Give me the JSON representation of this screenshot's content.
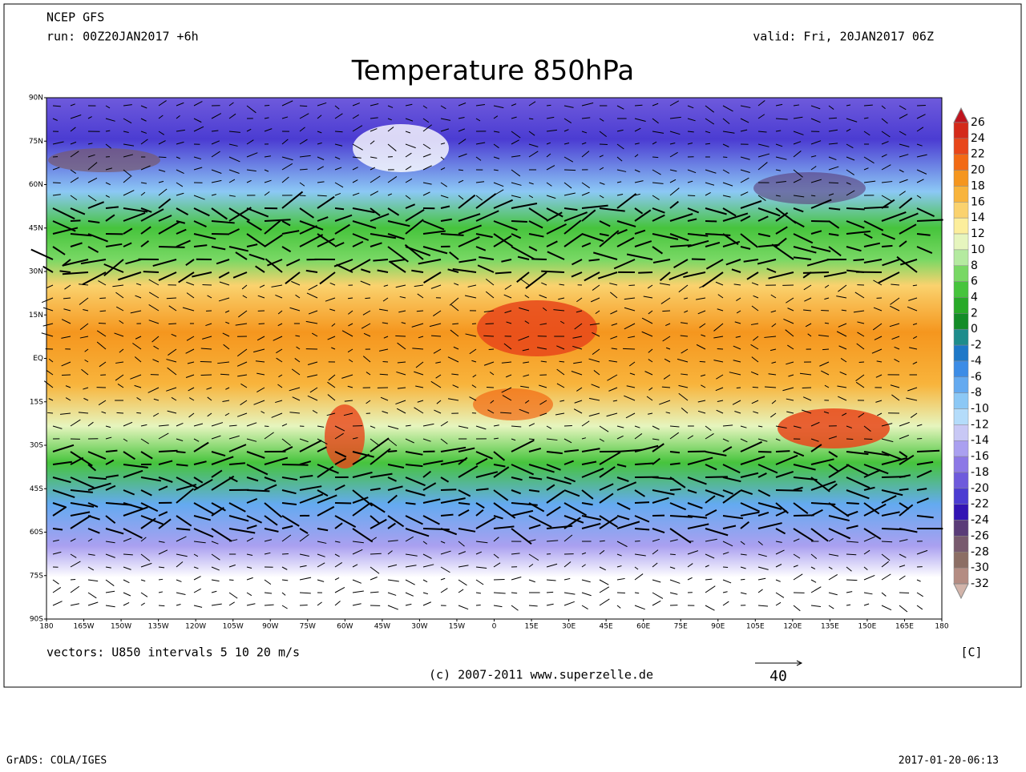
{
  "header": {
    "source": "NCEP GFS",
    "run": "run: 00Z20JAN2017 +6h",
    "valid": "valid: Fri, 20JAN2017 06Z",
    "title": "Temperature 850hPa"
  },
  "map": {
    "lat_labels": [
      "90N",
      "75N",
      "60N",
      "45N",
      "30N",
      "15N",
      "EQ",
      "15S",
      "30S",
      "45S",
      "60S",
      "75S",
      "90S"
    ],
    "lon_labels": [
      "180",
      "165W",
      "150W",
      "135W",
      "120W",
      "105W",
      "90W",
      "75W",
      "60W",
      "45W",
      "30W",
      "15W",
      "0",
      "15E",
      "30E",
      "45E",
      "60E",
      "75E",
      "90E",
      "105E",
      "120E",
      "135E",
      "150E",
      "165E",
      "180"
    ]
  },
  "colorbar": {
    "levels": [
      26,
      24,
      22,
      20,
      18,
      16,
      14,
      12,
      10,
      8,
      6,
      4,
      2,
      0,
      -2,
      -4,
      -6,
      -8,
      -10,
      -12,
      -14,
      -16,
      -18,
      -20,
      -22,
      -24,
      -26,
      -28,
      -30,
      -32
    ],
    "colors": [
      "#c0141e",
      "#d42a1a",
      "#e8461a",
      "#f26a14",
      "#f5961e",
      "#f8b43c",
      "#fad26e",
      "#fcee9c",
      "#e6f5be",
      "#b4eaa0",
      "#78d864",
      "#46c43c",
      "#28aa28",
      "#148c28",
      "#1e8c8c",
      "#1e78c8",
      "#3c8ce6",
      "#64aaf0",
      "#8cc8f5",
      "#b4dcfa",
      "#c8c8f5",
      "#aaa0f0",
      "#8c78e6",
      "#6e5adc",
      "#4b3cd2",
      "#3214b4",
      "#5a3c78",
      "#785a6e",
      "#8c6e64",
      "#b48c82",
      "#d2b4aa"
    ],
    "unit": "[C]"
  },
  "footer": {
    "vectors": "vectors: U850 intervals 5 10 20 m/s",
    "copyright": "(c) 2007-2011 www.superzelle.de",
    "reference_vector": "40",
    "software": "GrADS: COLA/IGES",
    "timestamp": "2017-01-20-06:13"
  }
}
